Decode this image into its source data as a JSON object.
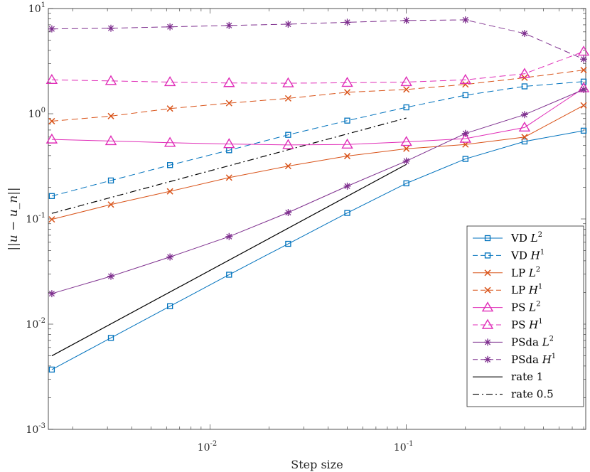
{
  "chart_data": {
    "type": "line",
    "xscale": "log",
    "yscale": "log",
    "xlabel": "Step size",
    "ylabel": "||u − u_n||",
    "xlim": [
      0.0015,
      0.82
    ],
    "ylim": [
      0.001,
      10
    ],
    "x": [
      0.0015625,
      0.003125,
      0.00625,
      0.0125,
      0.025,
      0.05,
      0.1,
      0.2,
      0.4,
      0.8
    ],
    "x_ticks": [
      {
        "value": 0.01,
        "base": "10",
        "exp": "-2"
      },
      {
        "value": 0.1,
        "base": "10",
        "exp": "-1"
      }
    ],
    "y_ticks": [
      {
        "value": 0.001,
        "base": "10",
        "exp": "-3"
      },
      {
        "value": 0.01,
        "base": "10",
        "exp": "-2"
      },
      {
        "value": 0.1,
        "base": "10",
        "exp": "-1"
      },
      {
        "value": 1,
        "base": "10",
        "exp": "0"
      },
      {
        "value": 10,
        "base": "10",
        "exp": "1"
      }
    ],
    "series": [
      {
        "name": "VD",
        "norm": "L",
        "sup": "2",
        "color": "#0072BD",
        "marker": "square",
        "dash": "solid",
        "values": [
          0.0037,
          0.0074,
          0.0148,
          0.0295,
          0.058,
          0.114,
          0.218,
          0.372,
          0.545,
          0.69
        ]
      },
      {
        "name": "VD",
        "norm": "H",
        "sup": "1",
        "color": "#0072BD",
        "marker": "square",
        "dash": "dashed",
        "values": [
          0.165,
          0.232,
          0.325,
          0.45,
          0.63,
          0.86,
          1.15,
          1.5,
          1.82,
          2.02
        ]
      },
      {
        "name": "LP",
        "norm": "L",
        "sup": "2",
        "color": "#D95319",
        "marker": "x",
        "dash": "solid",
        "values": [
          0.099,
          0.137,
          0.183,
          0.247,
          0.318,
          0.396,
          0.465,
          0.51,
          0.6,
          1.2
        ]
      },
      {
        "name": "LP",
        "norm": "H",
        "sup": "1",
        "color": "#D95319",
        "marker": "x",
        "dash": "dashed",
        "values": [
          0.85,
          0.95,
          1.12,
          1.26,
          1.4,
          1.6,
          1.7,
          1.9,
          2.2,
          2.6
        ]
      },
      {
        "name": "PS",
        "norm": "L",
        "sup": "2",
        "color": "#E02EB8",
        "marker": "triangle",
        "dash": "solid",
        "values": [
          0.57,
          0.55,
          0.53,
          0.515,
          0.505,
          0.51,
          0.54,
          0.58,
          0.74,
          1.75
        ]
      },
      {
        "name": "PS",
        "norm": "H",
        "sup": "1",
        "color": "#E02EB8",
        "marker": "triangle",
        "dash": "dashed",
        "values": [
          2.1,
          2.05,
          2.0,
          1.96,
          1.95,
          1.97,
          2.0,
          2.1,
          2.4,
          3.9
        ]
      },
      {
        "name": "PSda",
        "norm": "L",
        "sup": "2",
        "color": "#7E2F8E",
        "marker": "asterisk",
        "dash": "solid",
        "values": [
          0.0195,
          0.0285,
          0.0435,
          0.068,
          0.115,
          0.205,
          0.355,
          0.65,
          0.98,
          1.7
        ]
      },
      {
        "name": "PSda",
        "norm": "H",
        "sup": "1",
        "color": "#7E2F8E",
        "marker": "asterisk",
        "dash": "dashed",
        "values": [
          6.4,
          6.5,
          6.7,
          6.9,
          7.1,
          7.4,
          7.7,
          7.8,
          5.8,
          3.3
        ]
      }
    ],
    "reference_lines": [
      {
        "name": "rate 1",
        "color": "#000000",
        "dash": "solid",
        "x": [
          0.0015625,
          0.1
        ],
        "values": [
          0.005,
          0.33
        ]
      },
      {
        "name": "rate 0.5",
        "color": "#000000",
        "dash": "dashdot",
        "x": [
          0.0015625,
          0.1
        ],
        "values": [
          0.113,
          0.91
        ]
      }
    ],
    "legend_position": "bottom-right",
    "grid": false
  }
}
